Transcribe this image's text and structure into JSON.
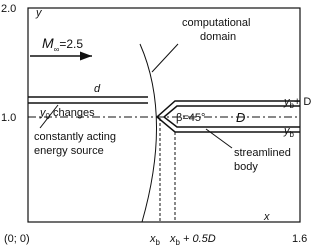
{
  "axes": {
    "y_top": "2.0",
    "y_label": "y",
    "y_mid": "1.0",
    "origin": "(0; 0)",
    "x_label": "x",
    "x_right": "1.6"
  },
  "flow": {
    "symbol": "M",
    "subscript": "∞",
    "value": "=2.5"
  },
  "domain_label": [
    "computational",
    "domain"
  ],
  "source": {
    "width_label": "d",
    "position_symbol": "y",
    "position_subscript": "0",
    "position_text": " changes",
    "label": [
      "constantly acting",
      "energy source"
    ]
  },
  "body": {
    "angle": "β=45°",
    "diameter": "D",
    "top_symbol": "y",
    "top_subscript": "b",
    "top_text": "+ D",
    "bottom_symbol": "y",
    "bottom_subscript": "b",
    "label": [
      "streamlined",
      "body"
    ]
  },
  "x_marks": {
    "nose_symbol": "x",
    "nose_subscript": "b",
    "end_symbol": "x",
    "end_subscript": "b",
    "end_text": " + 0.5D"
  }
}
